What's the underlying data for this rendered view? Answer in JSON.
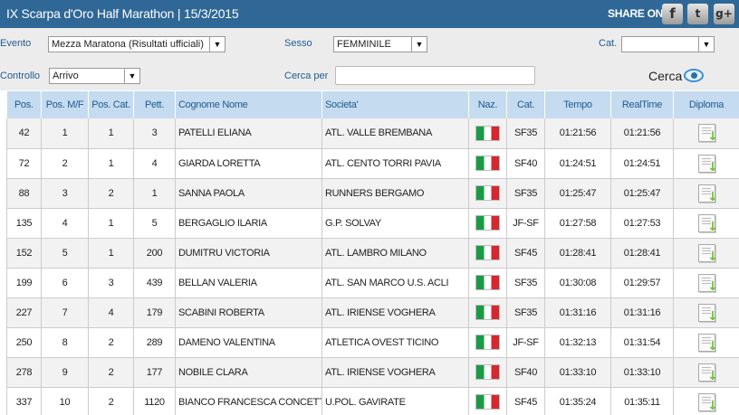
{
  "header": {
    "title": "IX Scarpa d'Oro Half Marathon | 15/3/2015",
    "share_label": "SHARE ON",
    "social": [
      {
        "icon": "facebook-icon",
        "glyph": "f"
      },
      {
        "icon": "twitter-icon",
        "glyph": "t"
      },
      {
        "icon": "google-plus-icon",
        "glyph": "g+"
      }
    ]
  },
  "filters": {
    "evento_label": "Evento",
    "evento_value": "Mezza Maratona (Risultati ufficiali)",
    "sesso_label": "Sesso",
    "sesso_value": "FEMMINILE",
    "cat_label": "Cat.",
    "cat_value": "",
    "controllo_label": "Controllo",
    "controllo_value": "Arrivo",
    "cerca_per_label": "Cerca per",
    "cerca_per_value": "",
    "cerca_label": "Cerca"
  },
  "table": {
    "columns": [
      "Pos.",
      "Pos. M/F",
      "Pos. Cat.",
      "Pett.",
      "Cognome Nome",
      "Societa'",
      "Naz.",
      "Cat.",
      "Tempo",
      "RealTime",
      "Diploma"
    ],
    "rows": [
      [
        "42",
        "1",
        "1",
        "3",
        "PATELLI ELIANA",
        "ATL. VALLE BREMBANA",
        "ITA",
        "SF35",
        "01:21:56",
        "01:21:56"
      ],
      [
        "72",
        "2",
        "1",
        "4",
        "GIARDA LORETTA",
        "ATL. CENTO TORRI PAVIA",
        "ITA",
        "SF40",
        "01:24:51",
        "01:24:51"
      ],
      [
        "88",
        "3",
        "2",
        "1",
        "SANNA PAOLA",
        "RUNNERS BERGAMO",
        "ITA",
        "SF35",
        "01:25:47",
        "01:25:47"
      ],
      [
        "135",
        "4",
        "1",
        "5",
        "BERGAGLIO ILARIA",
        "G.P. SOLVAY",
        "ITA",
        "JF-SF",
        "01:27:58",
        "01:27:53"
      ],
      [
        "152",
        "5",
        "1",
        "200",
        "DUMITRU VICTORIA",
        "ATL. LAMBRO MILANO",
        "ITA",
        "SF45",
        "01:28:41",
        "01:28:41"
      ],
      [
        "199",
        "6",
        "3",
        "439",
        "BELLAN VALERIA",
        "ATL. SAN MARCO U.S. ACLI",
        "ITA",
        "SF35",
        "01:30:08",
        "01:29:57"
      ],
      [
        "227",
        "7",
        "4",
        "179",
        "SCABINI ROBERTA",
        "ATL. IRIENSE VOGHERA",
        "ITA",
        "SF35",
        "01:31:16",
        "01:31:16"
      ],
      [
        "250",
        "8",
        "2",
        "289",
        "DAMENO VALENTINA",
        "ATLETICA OVEST TICINO",
        "ITA",
        "JF-SF",
        "01:32:13",
        "01:31:54"
      ],
      [
        "278",
        "9",
        "2",
        "177",
        "NOBILE CLARA",
        "ATL. IRIENSE VOGHERA",
        "ITA",
        "SF40",
        "01:33:10",
        "01:33:10"
      ],
      [
        "337",
        "10",
        "2",
        "1120",
        "BIANCO FRANCESCA CONCETTA",
        "U.POL. GAVIRATE",
        "ITA",
        "SF45",
        "01:35:24",
        "01:35:11"
      ]
    ]
  },
  "colors": {
    "header_bg": "#2f6796",
    "label_blue": "#1f5b8e",
    "table_header_bg": "#c5dbef"
  }
}
